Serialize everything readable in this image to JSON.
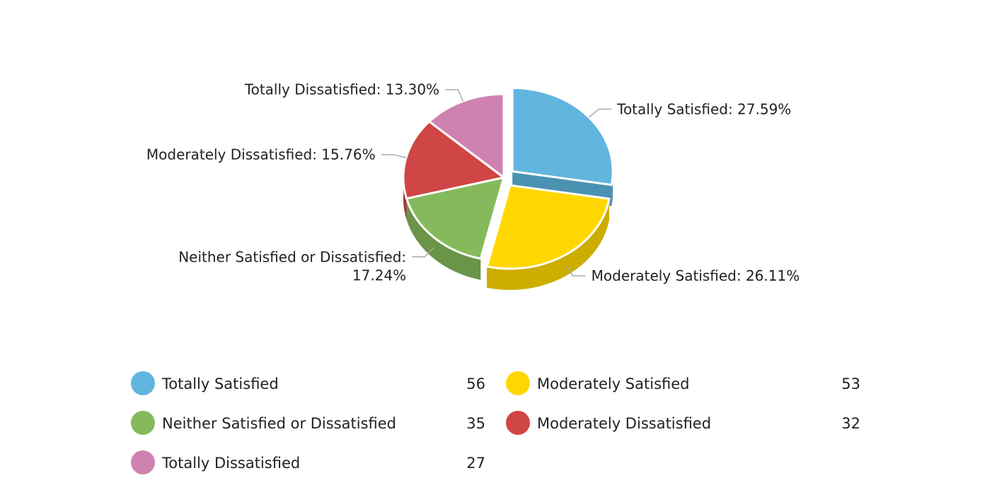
{
  "chart_data": {
    "type": "pie",
    "style": "3d-exploded",
    "slices": [
      {
        "label": "Totally Satisfied",
        "value": 56,
        "percent_label": "27.59%",
        "color": "#62B5DE",
        "side_color": "#4A92B2",
        "exploded": true
      },
      {
        "label": "Moderately Satisfied",
        "value": 53,
        "percent_label": "26.11%",
        "color": "#FFD700",
        "side_color": "#CCAD00",
        "exploded": true
      },
      {
        "label": "Neither Satisfied or Dissatisfied",
        "value": 35,
        "percent_label": "17.24%",
        "color": "#85BA5C",
        "side_color": "#6A9448",
        "exploded": false
      },
      {
        "label": "Moderately Dissatisfied",
        "value": 32,
        "percent_label": "15.76%",
        "color": "#D04545",
        "side_color": "#A53535",
        "exploded": false
      },
      {
        "label": "Totally Dissatisfied",
        "value": 27,
        "percent_label": "13.30%",
        "color": "#CF82B0",
        "side_color": "#A6678C",
        "exploded": false
      }
    ],
    "legend": {
      "placement": "bottom",
      "columns": 2
    }
  }
}
